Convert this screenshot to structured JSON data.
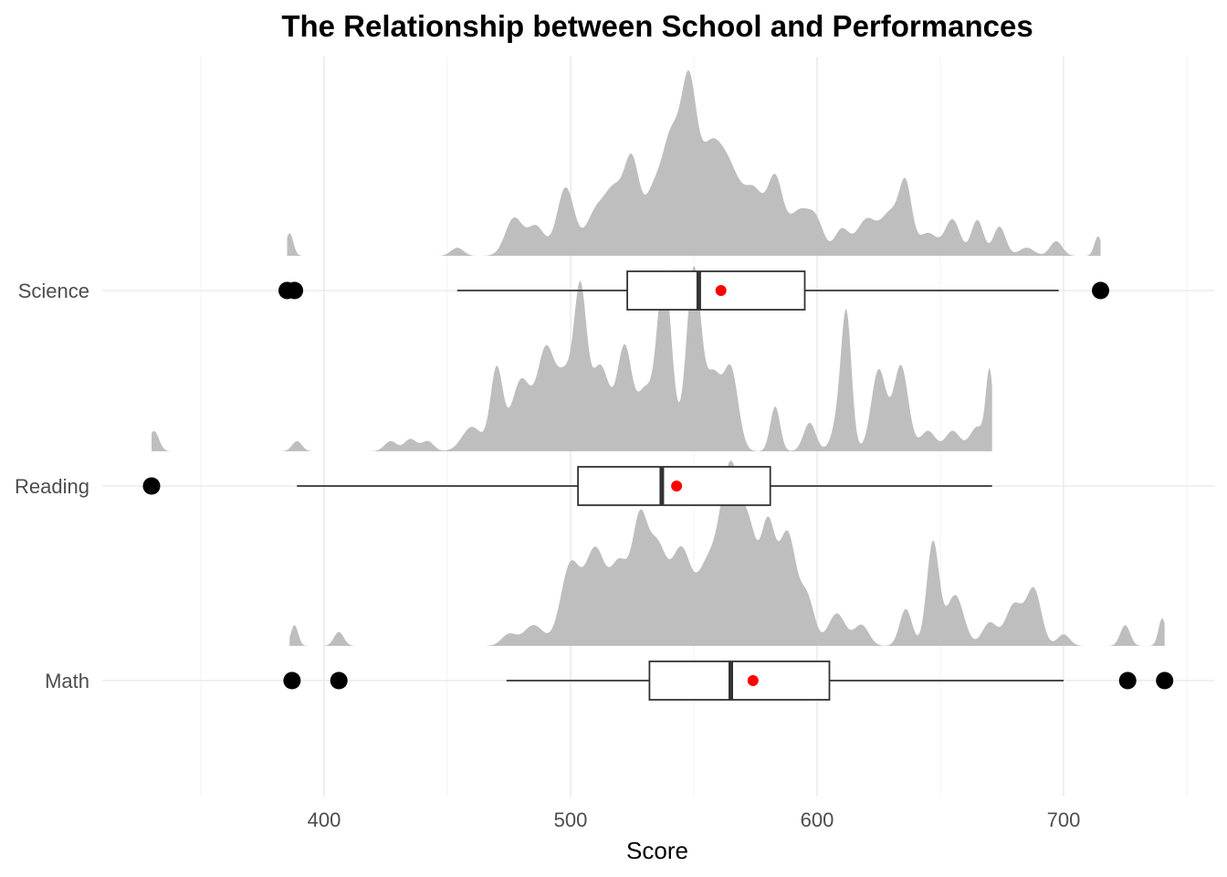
{
  "chart_data": {
    "type": "ridgeline-boxplot",
    "title": "The Relationship between School and Performances",
    "xlabel": "Score",
    "ylabel": "",
    "xlim": [
      308,
      760
    ],
    "x_ticks": [
      400,
      500,
      600,
      700
    ],
    "grid": true,
    "categories": [
      "Science",
      "Reading",
      "Math"
    ],
    "series": [
      {
        "name": "Science",
        "box": {
          "whisker_low": 454,
          "q1": 523,
          "median": 552,
          "q3": 595,
          "whisker_high": 698,
          "mean": 561
        },
        "outliers": [
          385,
          388,
          715
        ],
        "density": {
          "x_min": 385,
          "x_max": 715,
          "height": 0.95,
          "peaks": [
            [
              386,
              0.14,
              1.5
            ],
            [
              454,
              0.05,
              2.5
            ],
            [
              477,
              0.23,
              3.5
            ],
            [
              486,
              0.18,
              3.5
            ],
            [
              498,
              0.42,
              3.5
            ],
            [
              510,
              0.25,
              4
            ],
            [
              518,
              0.38,
              4
            ],
            [
              525,
              0.52,
              3
            ],
            [
              533,
              0.33,
              3.5
            ],
            [
              541,
              0.72,
              4
            ],
            [
              548,
              0.82,
              3
            ],
            [
              556,
              0.6,
              5
            ],
            [
              565,
              0.45,
              5
            ],
            [
              575,
              0.35,
              4
            ],
            [
              583,
              0.42,
              3
            ],
            [
              593,
              0.28,
              5
            ],
            [
              600,
              0.14,
              3
            ],
            [
              610,
              0.16,
              3
            ],
            [
              620,
              0.22,
              4
            ],
            [
              630,
              0.26,
              4
            ],
            [
              636,
              0.38,
              2.5
            ],
            [
              645,
              0.14,
              4
            ],
            [
              655,
              0.22,
              3
            ],
            [
              665,
              0.22,
              2.5
            ],
            [
              674,
              0.18,
              2.5
            ],
            [
              685,
              0.05,
              3
            ],
            [
              697,
              0.09,
              2.5
            ],
            [
              714,
              0.12,
              1.5
            ]
          ]
        }
      },
      {
        "name": "Reading",
        "box": {
          "whisker_low": 389,
          "q1": 503,
          "median": 537,
          "q3": 581,
          "whisker_high": 671,
          "mean": 543
        },
        "outliers": [
          330
        ],
        "density": {
          "x_min": 330,
          "x_max": 671,
          "height": 0.95,
          "peaks": [
            [
              331,
              0.1,
              2
            ],
            [
              389,
              0.05,
              2
            ],
            [
              427,
              0.05,
              2.5
            ],
            [
              435,
              0.06,
              2.5
            ],
            [
              442,
              0.05,
              2.5
            ],
            [
              460,
              0.12,
              4
            ],
            [
              470,
              0.4,
              2.5
            ],
            [
              480,
              0.35,
              4
            ],
            [
              490,
              0.48,
              3.5
            ],
            [
              498,
              0.35,
              3.5
            ],
            [
              504,
              0.7,
              2.5
            ],
            [
              512,
              0.42,
              4
            ],
            [
              522,
              0.5,
              3
            ],
            [
              530,
              0.28,
              3
            ],
            [
              538,
              0.88,
              3
            ],
            [
              550,
              0.9,
              3
            ],
            [
              558,
              0.35,
              3
            ],
            [
              565,
              0.4,
              3
            ],
            [
              583,
              0.22,
              2
            ],
            [
              597,
              0.14,
              2.5
            ],
            [
              610,
              0.22,
              3
            ],
            [
              612,
              0.52,
              2
            ],
            [
              625,
              0.4,
              3
            ],
            [
              634,
              0.42,
              3
            ],
            [
              645,
              0.1,
              3
            ],
            [
              655,
              0.1,
              3
            ],
            [
              665,
              0.12,
              3
            ],
            [
              670,
              0.38,
              1.5
            ]
          ]
        }
      },
      {
        "name": "Math",
        "box": {
          "whisker_low": 474,
          "q1": 532,
          "median": 565,
          "q3": 605,
          "whisker_high": 700,
          "mean": 574
        },
        "outliers": [
          387,
          406,
          726,
          741
        ],
        "density": {
          "x_min": 386,
          "x_max": 741,
          "height": 0.95,
          "peaks": [
            [
              388,
              0.09,
              1.5
            ],
            [
              406,
              0.06,
              2
            ],
            [
              475,
              0.05,
              3
            ],
            [
              485,
              0.09,
              4
            ],
            [
              500,
              0.35,
              4
            ],
            [
              510,
              0.4,
              4
            ],
            [
              520,
              0.35,
              4
            ],
            [
              528,
              0.45,
              3
            ],
            [
              535,
              0.42,
              4
            ],
            [
              545,
              0.4,
              4
            ],
            [
              555,
              0.3,
              4
            ],
            [
              565,
              0.78,
              4.5
            ],
            [
              573,
              0.35,
              3
            ],
            [
              580,
              0.5,
              3
            ],
            [
              588,
              0.48,
              3.5
            ],
            [
              596,
              0.2,
              3
            ],
            [
              608,
              0.14,
              3.5
            ],
            [
              618,
              0.09,
              3
            ],
            [
              636,
              0.16,
              2.5
            ],
            [
              647,
              0.45,
              2.5
            ],
            [
              656,
              0.22,
              3.5
            ],
            [
              670,
              0.1,
              3
            ],
            [
              680,
              0.18,
              3.5
            ],
            [
              688,
              0.24,
              3
            ],
            [
              700,
              0.05,
              2.5
            ],
            [
              725,
              0.09,
              2
            ],
            [
              740,
              0.12,
              1.5
            ]
          ]
        }
      }
    ]
  }
}
